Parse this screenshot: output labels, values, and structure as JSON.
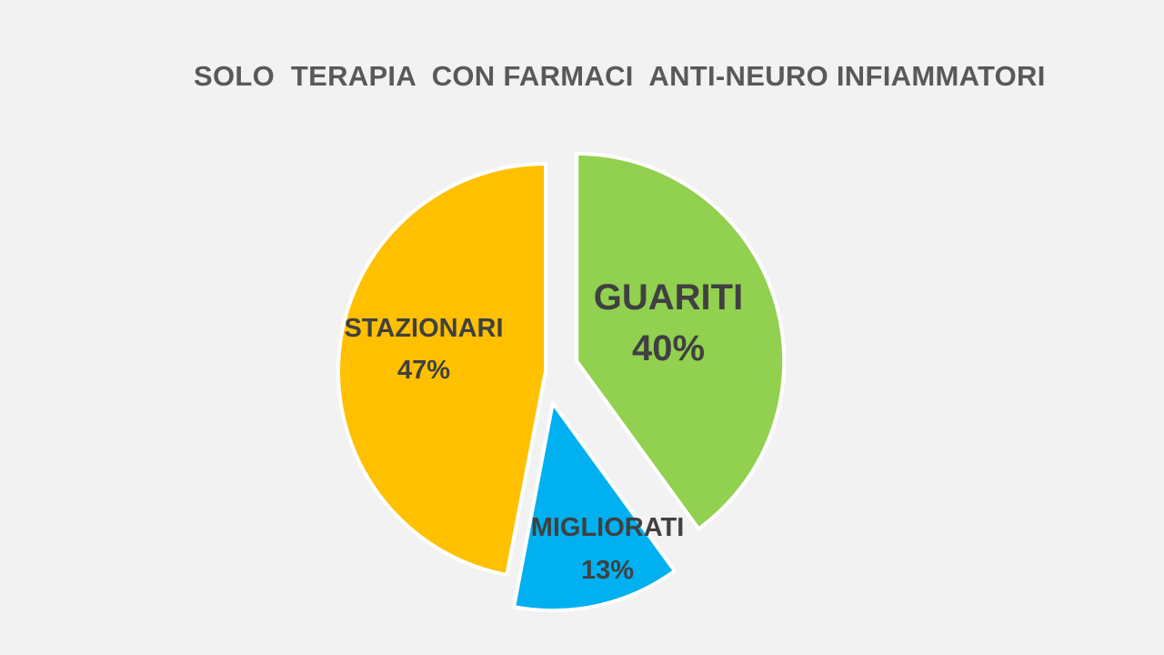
{
  "chart_data": {
    "type": "pie",
    "title": "SOLO  TERAPIA  CON FARMACI  ANTI-NEURO INFIAMMATORI",
    "slices": [
      {
        "name": "GUARITI",
        "value": 40,
        "value_label": "40%",
        "color": "#92d050",
        "exploded": true
      },
      {
        "name": "MIGLIORATI",
        "value": 13,
        "value_label": "13%",
        "color": "#00b0f0",
        "exploded": true
      },
      {
        "name": "STAZIONARI",
        "value": 47,
        "value_label": "47%",
        "color": "#ffc000",
        "exploded": false
      }
    ],
    "start_angle": "12 o'clock",
    "direction": "clockwise",
    "legend": "none"
  }
}
